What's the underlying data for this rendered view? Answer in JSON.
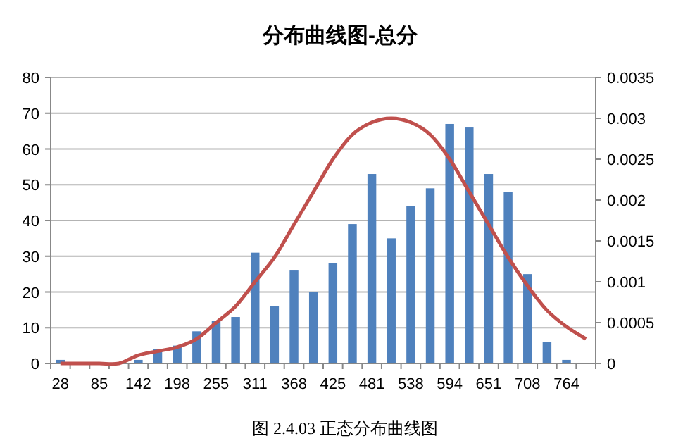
{
  "chart_data": {
    "type": "bar",
    "title": "分布曲线图-总分",
    "categories": [
      "28",
      null,
      "85",
      null,
      "142",
      null,
      "198",
      null,
      "255",
      null,
      "311",
      null,
      "368",
      null,
      "425",
      null,
      "481",
      null,
      "538",
      null,
      "594",
      null,
      "651",
      null,
      "708",
      null,
      "764",
      null
    ],
    "series": [
      {
        "color": "#4f81bd",
        "values": [
          1,
          0,
          0,
          0,
          1,
          4,
          5,
          9,
          12,
          13,
          31,
          16,
          26,
          20,
          28,
          39,
          53,
          35,
          44,
          49,
          67,
          66,
          53,
          48,
          25,
          6,
          1,
          0
        ]
      },
      {
        "type": "line",
        "axis": "y2",
        "color": "#c0504d",
        "values": [
          0,
          0,
          0,
          0,
          0.0001,
          0.00015,
          0.0002,
          0.0003,
          0.0005,
          0.0007,
          0.001,
          0.0013,
          0.0017,
          0.0021,
          0.0025,
          0.0028,
          0.00295,
          0.003,
          0.00295,
          0.0028,
          0.0025,
          0.0021,
          0.0017,
          0.0013,
          0.00095,
          0.00065,
          0.00045,
          0.0003
        ]
      }
    ],
    "ylim": [
      0,
      80
    ],
    "yticks": [
      0,
      10,
      20,
      30,
      40,
      50,
      60,
      70,
      80
    ],
    "y2lim": [
      0,
      0.0035
    ],
    "y2ticks": [
      0,
      0.0005,
      0.001,
      0.0015,
      0.002,
      0.0025,
      0.003,
      0.0035
    ],
    "grid": "y",
    "marker": "none",
    "line_style": "solid",
    "annotations": [
      "图 2.4.03 正态分布曲线图"
    ]
  }
}
